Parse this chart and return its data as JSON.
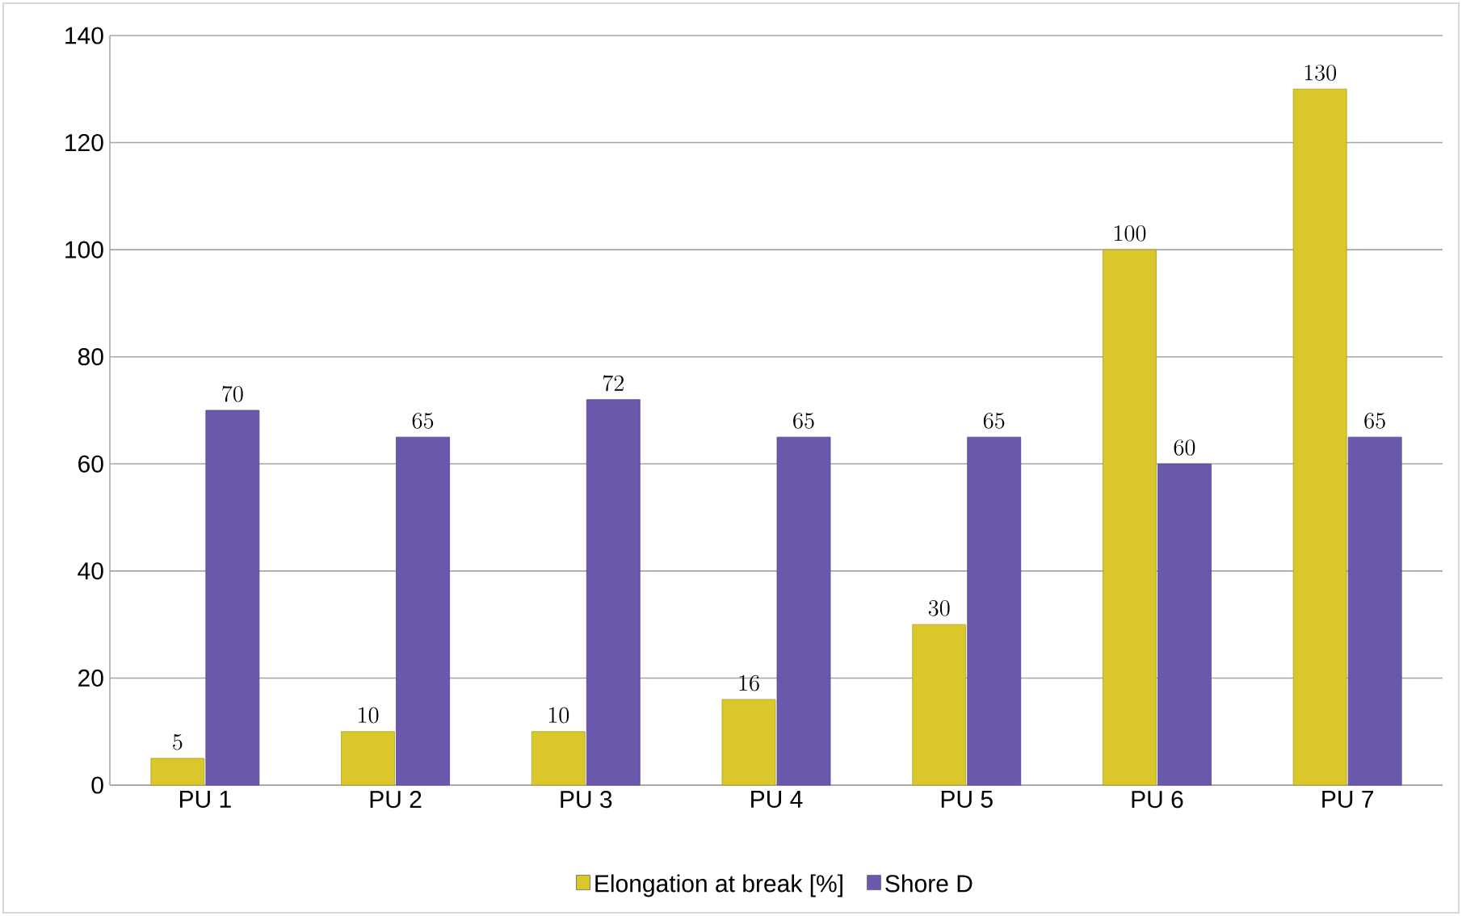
{
  "chart_data": {
    "type": "bar",
    "categories": [
      "PU 1",
      "PU 2",
      "PU 3",
      "PU 4",
      "PU 5",
      "PU 6",
      "PU 7"
    ],
    "series": [
      {
        "name": "Elongation at break [%]",
        "color": "#d9c72b",
        "values": [
          5,
          10,
          10,
          16,
          30,
          100,
          130
        ]
      },
      {
        "name": "Shore D",
        "color": "#6a58ad",
        "values": [
          70,
          65,
          72,
          65,
          65,
          60,
          65
        ]
      }
    ],
    "ylim": [
      0,
      140
    ],
    "yticks": [
      0,
      20,
      40,
      60,
      80,
      100,
      120,
      140
    ],
    "grid": "y",
    "legend": "bottom",
    "data_labels": true
  }
}
